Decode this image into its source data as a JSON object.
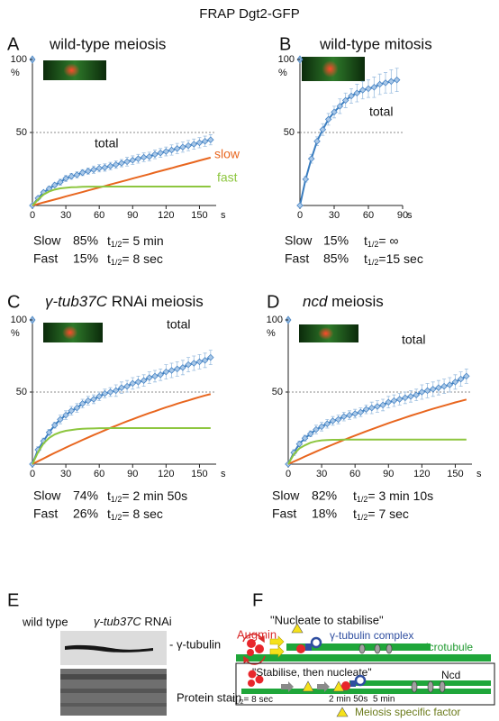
{
  "title": "FRAP  Dgt2-GFP",
  "t_half_symbol": "t",
  "t_half_subscript": "1/2",
  "chart_data": [
    {
      "type": "line",
      "letter": "A",
      "title": "wild-type meiosis",
      "x": [
        0,
        5,
        10,
        15,
        20,
        25,
        30,
        35,
        40,
        45,
        50,
        55,
        60,
        65,
        70,
        75,
        80,
        85,
        90,
        95,
        100,
        105,
        110,
        115,
        120,
        125,
        130,
        135,
        140,
        145,
        150,
        155,
        160
      ],
      "series": [
        {
          "name": "total",
          "color": "#3a7dbf",
          "label_color": "#111111",
          "marker": "diamond",
          "values": [
            0,
            5,
            9,
            11.5,
            14,
            16,
            18.5,
            20,
            21,
            22.5,
            23.5,
            24.5,
            25.5,
            26,
            27,
            28,
            29,
            30,
            31,
            32,
            33,
            33.5,
            35,
            36,
            37,
            38,
            39,
            40,
            41,
            42,
            43,
            44,
            45
          ],
          "errors": [
            0,
            1,
            1,
            1.5,
            1.5,
            2,
            2,
            2,
            2,
            2,
            2,
            2.5,
            2.5,
            2.5,
            2.5,
            2.5,
            2.5,
            3,
            3,
            3,
            3,
            3,
            3,
            3,
            3,
            3.5,
            3.5,
            3.5,
            3.5,
            3.5,
            3.5,
            3.5,
            3.5
          ]
        },
        {
          "name": "slow",
          "color": "#e8661f",
          "values": [
            0,
            1.0,
            2.1,
            3.1,
            4.1,
            5.1,
            6.2,
            7.2,
            8.2,
            9.2,
            10.3,
            11.3,
            12.3,
            13.3,
            14.4,
            15.4,
            16.4,
            17.4,
            18.5,
            19.5,
            20.5,
            21.5,
            22.6,
            23.6,
            24.6,
            25.6,
            26.7,
            27.7,
            28.7,
            29.7,
            30.8,
            31.8,
            32.8
          ]
        },
        {
          "name": "fast",
          "color": "#8dc63f",
          "values": [
            0,
            4.0,
            7.5,
            9.6,
            10.9,
            11.7,
            12.1,
            12.5,
            12.6,
            12.8,
            12.9,
            12.9,
            12.9,
            13,
            13,
            13,
            13,
            13,
            13,
            13,
            13,
            13,
            13,
            13,
            13,
            13,
            13,
            13,
            13,
            13,
            13,
            13,
            13
          ]
        }
      ],
      "xlim": [
        0,
        165
      ],
      "xticks": [
        0,
        30,
        60,
        90,
        120,
        150
      ],
      "x_unit": "s",
      "ylim": [
        0,
        100
      ],
      "yticks": [
        50,
        100
      ],
      "y_unit": "%",
      "grid": true,
      "stats": [
        {
          "label": "Slow",
          "percent": "85%",
          "t_half": "= 5 min"
        },
        {
          "label": "Fast",
          "percent": "15%",
          "t_half": "= 8 sec"
        }
      ]
    },
    {
      "type": "line",
      "letter": "B",
      "title": "wild-type mitosis",
      "x": [
        0,
        5,
        10,
        15,
        20,
        25,
        30,
        35,
        40,
        45,
        50,
        55,
        60,
        65,
        70,
        75,
        80,
        85
      ],
      "series": [
        {
          "name": "total",
          "color": "#3a7dbf",
          "label_color": "#111111",
          "marker": "diamond",
          "values": [
            0,
            18,
            32,
            44,
            52,
            59,
            64,
            68,
            72,
            75,
            77,
            79,
            80,
            81,
            83,
            84,
            85,
            86
          ],
          "errors": [
            0,
            2,
            3,
            3,
            4,
            4,
            4,
            5,
            5,
            5,
            6,
            6,
            6,
            7,
            7,
            7,
            8,
            8
          ]
        }
      ],
      "xlim": [
        0,
        90
      ],
      "xticks": [
        0,
        30,
        60,
        90
      ],
      "x_unit": "s",
      "ylim": [
        0,
        100
      ],
      "yticks": [
        50,
        100
      ],
      "y_unit": "%",
      "grid": true,
      "stats": [
        {
          "label": "Slow",
          "percent": "15%",
          "t_half": "= ∞"
        },
        {
          "label": "Fast",
          "percent": "85%",
          "t_half": "=15 sec"
        }
      ]
    },
    {
      "type": "line",
      "letter": "C",
      "title": [
        {
          "text": "γ-tub37C",
          "italic": true
        },
        {
          "text": " RNAi meiosis"
        }
      ],
      "x": [
        0,
        5,
        10,
        15,
        20,
        25,
        30,
        35,
        40,
        45,
        50,
        55,
        60,
        65,
        70,
        75,
        80,
        85,
        90,
        95,
        100,
        105,
        110,
        115,
        120,
        125,
        130,
        135,
        140,
        145,
        150,
        155,
        160
      ],
      "series": [
        {
          "name": "total",
          "color": "#3a7dbf",
          "label_color": "#111111",
          "marker": "diamond",
          "values": [
            0,
            10,
            16,
            22,
            27,
            31,
            34,
            37,
            39,
            42,
            44,
            45,
            47,
            49,
            50,
            51,
            53,
            54,
            56,
            57,
            58,
            60,
            61,
            62,
            64,
            65,
            66,
            67,
            69,
            70,
            71,
            72,
            74
          ],
          "errors": [
            0,
            2,
            2,
            2,
            2,
            3,
            3,
            3,
            3,
            3,
            3,
            3,
            3,
            3,
            3,
            4,
            4,
            4,
            4,
            4,
            4,
            4,
            4,
            4,
            5,
            5,
            5,
            5,
            5,
            5,
            5,
            5,
            5
          ]
        },
        {
          "color": "#e8661f",
          "values": [
            0,
            2.0,
            3.9,
            5.9,
            7.8,
            9.6,
            11.5,
            13.3,
            15.0,
            16.8,
            18.5,
            20.2,
            21.8,
            23.5,
            25.1,
            26.6,
            28.2,
            29.7,
            31.1,
            32.6,
            34.0,
            35.4,
            36.7,
            38.1,
            39.4,
            40.6,
            41.9,
            43.1,
            44.2,
            45.4,
            46.5,
            47.6,
            48.6
          ]
        },
        {
          "color": "#8dc63f",
          "values": [
            0,
            8.2,
            14.4,
            18.2,
            20.6,
            22.1,
            23.1,
            23.7,
            24.2,
            24.5,
            24.7,
            24.8,
            24.9,
            24.9,
            25,
            25,
            25,
            25,
            25,
            25,
            25,
            25,
            25,
            25,
            25,
            25,
            25,
            25,
            25,
            25,
            25,
            25,
            25
          ]
        }
      ],
      "xlim": [
        0,
        165
      ],
      "xticks": [
        0,
        30,
        60,
        90,
        120,
        150
      ],
      "x_unit": "s",
      "ylim": [
        0,
        100
      ],
      "yticks": [
        50,
        100
      ],
      "y_unit": "%",
      "grid": true,
      "stats": [
        {
          "label": "Slow",
          "percent": "74%",
          "t_half": "= 2 min 50s"
        },
        {
          "label": "Fast",
          "percent": "26%",
          "t_half": "= 8 sec"
        }
      ]
    },
    {
      "type": "line",
      "letter": "D",
      "title": [
        {
          "text": "ncd",
          "italic": true
        },
        {
          "text": " meiosis"
        }
      ],
      "x": [
        0,
        5,
        10,
        15,
        20,
        25,
        30,
        35,
        40,
        45,
        50,
        55,
        60,
        65,
        70,
        75,
        80,
        85,
        90,
        95,
        100,
        105,
        110,
        115,
        120,
        125,
        130,
        135,
        140,
        145,
        150,
        155,
        160
      ],
      "series": [
        {
          "name": "total",
          "color": "#3a7dbf",
          "label_color": "#111111",
          "marker": "diamond",
          "values": [
            0,
            8,
            14,
            18,
            21,
            24,
            26,
            28,
            30,
            31,
            33,
            34,
            35,
            36,
            38,
            39,
            40,
            41,
            43,
            44,
            45,
            46,
            47,
            48,
            50,
            51,
            52,
            53,
            54,
            55,
            57,
            59,
            61
          ],
          "errors": [
            0,
            2,
            2,
            2,
            2,
            3,
            3,
            3,
            3,
            3,
            3,
            3,
            3,
            3,
            3,
            4,
            4,
            4,
            4,
            4,
            4,
            4,
            4,
            4,
            5,
            5,
            5,
            5,
            5,
            5,
            5,
            5,
            5
          ]
        },
        {
          "color": "#e8661f",
          "values": [
            0,
            1.8,
            3.5,
            5.3,
            7.0,
            8.7,
            10.4,
            12.0,
            13.6,
            15.2,
            16.8,
            18.3,
            19.8,
            21.3,
            22.8,
            24.2,
            25.6,
            27.0,
            28.4,
            29.7,
            31.0,
            32.3,
            33.6,
            34.8,
            36.0,
            37.2,
            38.4,
            39.5,
            40.6,
            41.7,
            42.8,
            43.8,
            44.8
          ]
        },
        {
          "color": "#8dc63f",
          "values": [
            0,
            6.8,
            10.9,
            13.1,
            14.9,
            15.9,
            16.5,
            16.7,
            16.9,
            16.9,
            17,
            17,
            17,
            17,
            17,
            17,
            17,
            17,
            17,
            17,
            17,
            17,
            17,
            17,
            17,
            17,
            17,
            17,
            17,
            17,
            17,
            17,
            17
          ]
        }
      ],
      "xlim": [
        0,
        165
      ],
      "xticks": [
        0,
        30,
        60,
        90,
        120,
        150
      ],
      "x_unit": "s",
      "ylim": [
        0,
        100
      ],
      "yticks": [
        50,
        100
      ],
      "y_unit": "%",
      "grid": true,
      "stats": [
        {
          "label": "Slow",
          "percent": "82%",
          "t_half": "= 3 min 10s"
        },
        {
          "label": "Fast",
          "percent": "18%",
          "t_half": "= 7 sec"
        }
      ]
    }
  ],
  "panel_e": {
    "letter": "E",
    "lane_1": "wild type",
    "lane_2": [
      {
        "text": "γ-tub37C",
        "italic": true
      },
      {
        "text": " RNAi"
      }
    ],
    "band_label": "- γ-tubulin",
    "stain_label": "Protein stain"
  },
  "panel_f": {
    "letter": "F",
    "top_title": "\"Nucleate to stabilise\"",
    "augmin": "Augmin",
    "complex": "γ-tubulin complex",
    "microtubule": "microtubule",
    "bottom_title": "\"Stabilise, then nucleate\"",
    "ncd": "Ncd",
    "time_1": "= 8 sec",
    "time_2": "2 min 50s",
    "time_3": "5 min",
    "legend": "Meiosis specific factor"
  }
}
